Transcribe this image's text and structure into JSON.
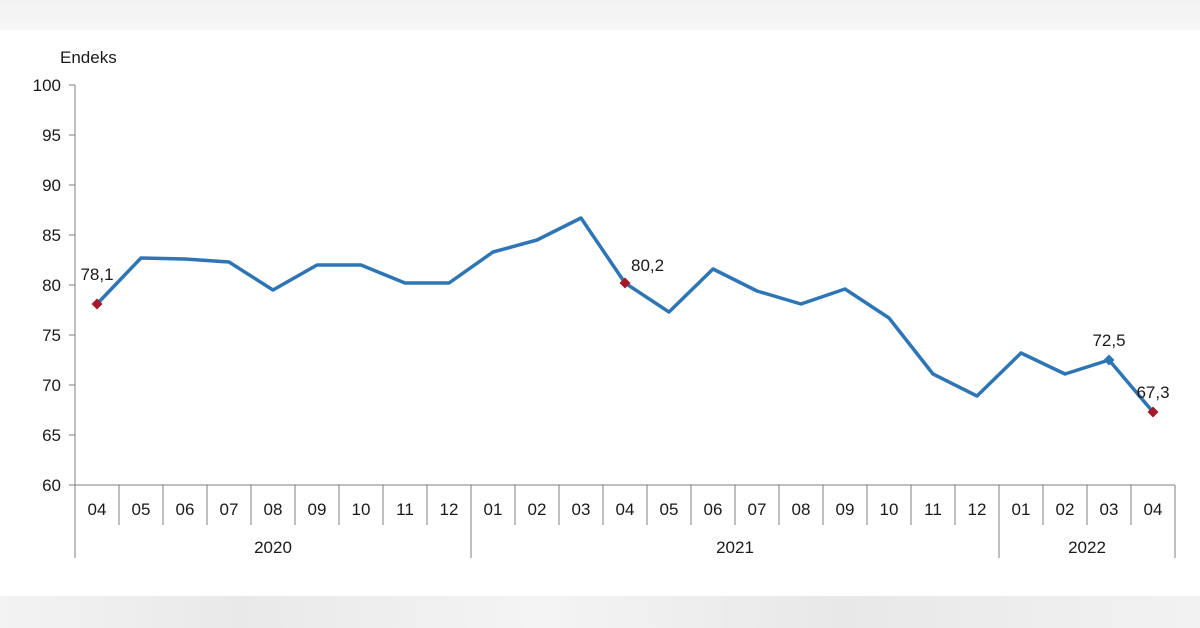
{
  "chart_data": {
    "type": "line",
    "ylabel": "Endeks",
    "ylim": [
      60,
      100
    ],
    "yticks": [
      "100",
      "95",
      "90",
      "85",
      "80",
      "75",
      "70",
      "65",
      "60"
    ],
    "months": [
      "04",
      "05",
      "06",
      "07",
      "08",
      "09",
      "10",
      "11",
      "12",
      "01",
      "02",
      "03",
      "04",
      "05",
      "06",
      "07",
      "08",
      "09",
      "10",
      "11",
      "12",
      "01",
      "02",
      "03",
      "04"
    ],
    "years": [
      {
        "label": "2020",
        "start": 0,
        "end": 8
      },
      {
        "label": "2021",
        "start": 9,
        "end": 20
      },
      {
        "label": "2022",
        "start": 21,
        "end": 24
      }
    ],
    "series": [
      {
        "values": [
          78.1,
          82.7,
          82.6,
          82.3,
          79.5,
          82.0,
          82.0,
          80.2,
          80.2,
          83.3,
          84.5,
          86.7,
          80.2,
          77.3,
          81.6,
          79.4,
          78.1,
          79.6,
          76.7,
          71.1,
          68.9,
          73.2,
          71.1,
          72.5,
          67.3
        ],
        "color": "#2e75b6"
      }
    ],
    "annotations": [
      {
        "index": 0,
        "label": "78,1",
        "marker_color": "#a31b2a"
      },
      {
        "index": 12,
        "label": "80,2",
        "marker_color": "#a31b2a"
      },
      {
        "index": 23,
        "label": "72,5",
        "marker_color": "#2e75b6"
      },
      {
        "index": 24,
        "label": "67,3",
        "marker_color": "#a31b2a"
      }
    ],
    "grid": false
  }
}
